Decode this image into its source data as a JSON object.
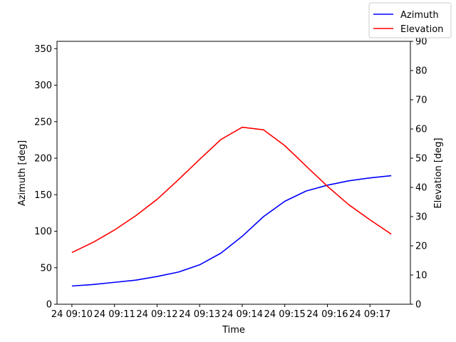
{
  "chart_data": {
    "type": "line",
    "xlabel": "Time",
    "ylabel_left": "Azimuth [deg]",
    "ylabel_right": "Elevation [deg]",
    "x_tick_labels": [
      "24 09:10",
      "24 09:11",
      "24 09:12",
      "24 09:13",
      "24 09:14",
      "24 09:15",
      "24 09:16",
      "24 09:17"
    ],
    "x_ticks_minutes": [
      0,
      1,
      2,
      3,
      4,
      5,
      6,
      7
    ],
    "xlim_minutes": [
      -0.35,
      7.95
    ],
    "ylim_left": [
      0,
      360
    ],
    "yticks_left": [
      0,
      50,
      100,
      150,
      200,
      250,
      300,
      350
    ],
    "ylim_right": [
      0,
      90
    ],
    "yticks_right": [
      0,
      10,
      20,
      30,
      40,
      50,
      60,
      70,
      80,
      90
    ],
    "grid": false,
    "legend_position": "top-right",
    "x_minutes": [
      0,
      0.5,
      1,
      1.5,
      2,
      2.5,
      3,
      3.5,
      4,
      4.5,
      5,
      5.5,
      6,
      6.5,
      7,
      7.5
    ],
    "series": [
      {
        "name": "Azimuth",
        "axis": "left",
        "color": "#0000ff",
        "values": [
          25,
          27,
          30,
          33,
          38,
          44,
          54,
          70,
          93,
          120,
          141,
          155,
          163,
          169,
          173,
          176
        ]
      },
      {
        "name": "Elevation",
        "axis": "right",
        "color": "#ff0000",
        "values": [
          17.7,
          21.2,
          25.4,
          30.3,
          35.9,
          42.6,
          49.6,
          56.4,
          60.6,
          59.7,
          54.3,
          47.3,
          40.4,
          34.1,
          28.9,
          24.0
        ]
      }
    ]
  }
}
